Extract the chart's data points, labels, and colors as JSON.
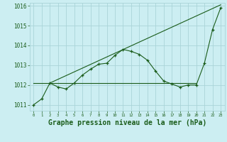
{
  "background_color": "#cceef2",
  "grid_color": "#aad4d8",
  "line_color": "#1a5c1a",
  "marker_color": "#1a5c1a",
  "xlabel": "Graphe pression niveau de la mer (hPa)",
  "xlabel_fontsize": 7,
  "ylim": [
    1010.7,
    1016.15
  ],
  "xlim": [
    -0.5,
    23.5
  ],
  "yticks": [
    1011,
    1012,
    1013,
    1014,
    1015,
    1016
  ],
  "xticks": [
    0,
    1,
    2,
    3,
    4,
    5,
    6,
    7,
    8,
    9,
    10,
    11,
    12,
    13,
    14,
    15,
    16,
    17,
    18,
    19,
    20,
    21,
    22,
    23
  ],
  "series1_x": [
    0,
    1,
    2,
    3,
    4,
    5,
    6,
    7,
    8,
    9,
    10,
    11,
    12,
    13,
    14,
    15,
    16,
    17,
    18,
    19,
    20,
    21,
    22,
    23
  ],
  "series1_y": [
    1011.0,
    1011.3,
    1012.1,
    1011.9,
    1011.8,
    1012.1,
    1012.5,
    1012.8,
    1013.05,
    1013.1,
    1013.5,
    1013.8,
    1013.7,
    1013.55,
    1013.25,
    1012.7,
    1012.2,
    1012.05,
    1011.9,
    1012.0,
    1012.0,
    1013.1,
    1014.8,
    1015.9
  ],
  "series2_x": [
    0,
    20
  ],
  "series2_y": [
    1012.1,
    1012.1
  ],
  "series3_x": [
    2,
    23
  ],
  "series3_y": [
    1012.1,
    1016.05
  ]
}
